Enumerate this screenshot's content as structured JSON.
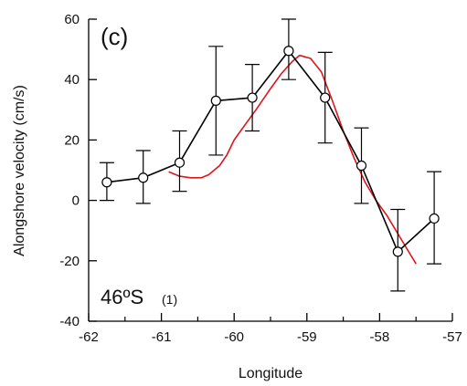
{
  "chart_data": {
    "type": "line",
    "panel_label": "(c)",
    "annotation_main": "46ºS",
    "annotation_sub": "(1)",
    "xlabel": "Longitude",
    "ylabel": "Alongshore velocity (cm/s)",
    "xlim": [
      -62,
      -57
    ],
    "ylim": [
      -40,
      60
    ],
    "xticks": [
      -62,
      -61,
      -60,
      -59,
      -58,
      -57
    ],
    "yticks": [
      -40,
      -20,
      0,
      20,
      40,
      60
    ],
    "grid": false,
    "colors": {
      "observed": "#000000",
      "model": "#e0141c"
    },
    "series": [
      {
        "style": "line-with-circles-and-errorbars",
        "x": [
          -61.75,
          -61.25,
          -60.75,
          -60.25,
          -59.75,
          -59.25,
          -58.75,
          -58.25,
          -57.75,
          -57.25
        ],
        "y": [
          6,
          7.5,
          12.5,
          33,
          34,
          49.5,
          34,
          11.5,
          -17,
          -6
        ],
        "err_low": [
          0,
          -1,
          3,
          15,
          23,
          40,
          19,
          -1,
          -30,
          -21
        ],
        "err_high": [
          12.5,
          16.5,
          23,
          51,
          45,
          60,
          49,
          24,
          -3,
          9.5
        ]
      },
      {
        "style": "line",
        "x": [
          -60.9,
          -60.75,
          -60.6,
          -60.45,
          -60.35,
          -60.2,
          -60.1,
          -60.0,
          -59.85,
          -59.7,
          -59.5,
          -59.35,
          -59.2,
          -59.1,
          -58.95,
          -58.8,
          -58.65,
          -58.5,
          -58.35,
          -58.2,
          -58.05,
          -57.9,
          -57.75,
          -57.6,
          -57.5
        ],
        "y": [
          9.5,
          8,
          7.5,
          7.5,
          8.5,
          11.5,
          15,
          20,
          25,
          30,
          37,
          42,
          46,
          48,
          47,
          42.5,
          33,
          23,
          14,
          6,
          0,
          -5,
          -11,
          -17,
          -21
        ]
      }
    ]
  }
}
